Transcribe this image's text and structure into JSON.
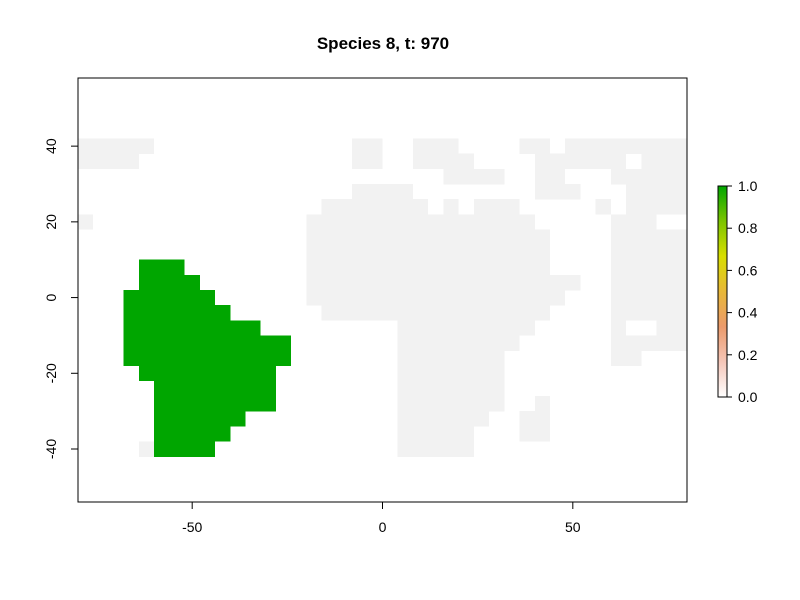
{
  "chart_data": {
    "type": "heatmap",
    "title": "Species 8, t: 970",
    "xlabel": "",
    "ylabel": "",
    "xlim": [
      -80,
      80
    ],
    "ylim": [
      -54,
      58
    ],
    "x_ticks": [
      -50,
      0,
      50
    ],
    "y_ticks": [
      -40,
      -20,
      0,
      20,
      40
    ],
    "cell_size_deg": 4,
    "colors": {
      "land_zero": "#f2f2f2",
      "present": "#00a600"
    },
    "legend": {
      "placement": "right",
      "min": 0.0,
      "max": 1.0,
      "tick_labels": [
        "0.0",
        "0.2",
        "0.4",
        "0.6",
        "0.8",
        "1.0"
      ],
      "ramp_colors": [
        "#ffffff",
        "#f5c6b8",
        "#eb9a6b",
        "#e8b838",
        "#d8de00",
        "#7cc400",
        "#00a600"
      ]
    },
    "land_value_0_rows": [
      {
        "lat": 40,
        "spans": [
          [
            -80,
            -60
          ],
          [
            -8,
            0
          ],
          [
            8,
            20
          ],
          [
            36,
            44
          ],
          [
            48,
            80
          ]
        ]
      },
      {
        "lat": 36,
        "spans": [
          [
            -80,
            -64
          ],
          [
            -8,
            0
          ],
          [
            8,
            24
          ],
          [
            40,
            52
          ],
          [
            48,
            64
          ],
          [
            68,
            80
          ]
        ]
      },
      {
        "lat": 32,
        "spans": [
          [
            16,
            32
          ],
          [
            40,
            48
          ],
          [
            60,
            80
          ]
        ]
      },
      {
        "lat": 28,
        "spans": [
          [
            -8,
            8
          ],
          [
            40,
            52
          ],
          [
            64,
            80
          ]
        ]
      },
      {
        "lat": 24,
        "spans": [
          [
            -16,
            12
          ],
          [
            16,
            20
          ],
          [
            24,
            36
          ],
          [
            56,
            60
          ],
          [
            64,
            80
          ]
        ]
      },
      {
        "lat": 20,
        "spans": [
          [
            -84,
            -76
          ],
          [
            -20,
            40
          ],
          [
            60,
            68
          ],
          [
            68,
            72
          ]
        ]
      },
      {
        "lat": 16,
        "spans": [
          [
            -20,
            44
          ],
          [
            60,
            80
          ]
        ]
      },
      {
        "lat": 12,
        "spans": [
          [
            -20,
            44
          ],
          [
            60,
            80
          ]
        ]
      },
      {
        "lat": 8,
        "spans": [
          [
            -20,
            44
          ],
          [
            60,
            80
          ]
        ]
      },
      {
        "lat": 4,
        "spans": [
          [
            -20,
            52
          ],
          [
            60,
            80
          ]
        ]
      },
      {
        "lat": 0,
        "spans": [
          [
            -64,
            -60
          ],
          [
            -20,
            48
          ],
          [
            60,
            80
          ]
        ]
      },
      {
        "lat": -4,
        "spans": [
          [
            -16,
            44
          ],
          [
            60,
            80
          ]
        ]
      },
      {
        "lat": -8,
        "spans": [
          [
            4,
            40
          ],
          [
            60,
            64
          ],
          [
            72,
            80
          ]
        ]
      },
      {
        "lat": -12,
        "spans": [
          [
            4,
            36
          ],
          [
            60,
            80
          ]
        ]
      },
      {
        "lat": -16,
        "spans": [
          [
            4,
            32
          ],
          [
            60,
            68
          ]
        ]
      },
      {
        "lat": -20,
        "spans": [
          [
            4,
            32
          ]
        ]
      },
      {
        "lat": -24,
        "spans": [
          [
            4,
            32
          ]
        ]
      },
      {
        "lat": -28,
        "spans": [
          [
            4,
            32
          ],
          [
            40,
            44
          ]
        ]
      },
      {
        "lat": -32,
        "spans": [
          [
            4,
            28
          ],
          [
            36,
            44
          ]
        ]
      },
      {
        "lat": -36,
        "spans": [
          [
            4,
            24
          ],
          [
            36,
            44
          ]
        ]
      },
      {
        "lat": -40,
        "spans": [
          [
            -64,
            -60
          ],
          [
            4,
            24
          ]
        ]
      }
    ],
    "species_value_1_rows": [
      {
        "lat": 8,
        "spans": [
          [
            -64,
            -52
          ]
        ]
      },
      {
        "lat": 4,
        "spans": [
          [
            -64,
            -48
          ]
        ]
      },
      {
        "lat": 0,
        "spans": [
          [
            -68,
            -44
          ]
        ]
      },
      {
        "lat": -4,
        "spans": [
          [
            -68,
            -40
          ]
        ]
      },
      {
        "lat": -8,
        "spans": [
          [
            -68,
            -32
          ]
        ]
      },
      {
        "lat": -12,
        "spans": [
          [
            -68,
            -24
          ]
        ]
      },
      {
        "lat": -16,
        "spans": [
          [
            -68,
            -24
          ]
        ]
      },
      {
        "lat": -20,
        "spans": [
          [
            -64,
            -28
          ]
        ]
      },
      {
        "lat": -24,
        "spans": [
          [
            -60,
            -28
          ]
        ]
      },
      {
        "lat": -28,
        "spans": [
          [
            -60,
            -28
          ]
        ]
      },
      {
        "lat": -32,
        "spans": [
          [
            -60,
            -36
          ]
        ]
      },
      {
        "lat": -36,
        "spans": [
          [
            -60,
            -40
          ]
        ]
      },
      {
        "lat": -40,
        "spans": [
          [
            -60,
            -44
          ]
        ]
      }
    ]
  }
}
